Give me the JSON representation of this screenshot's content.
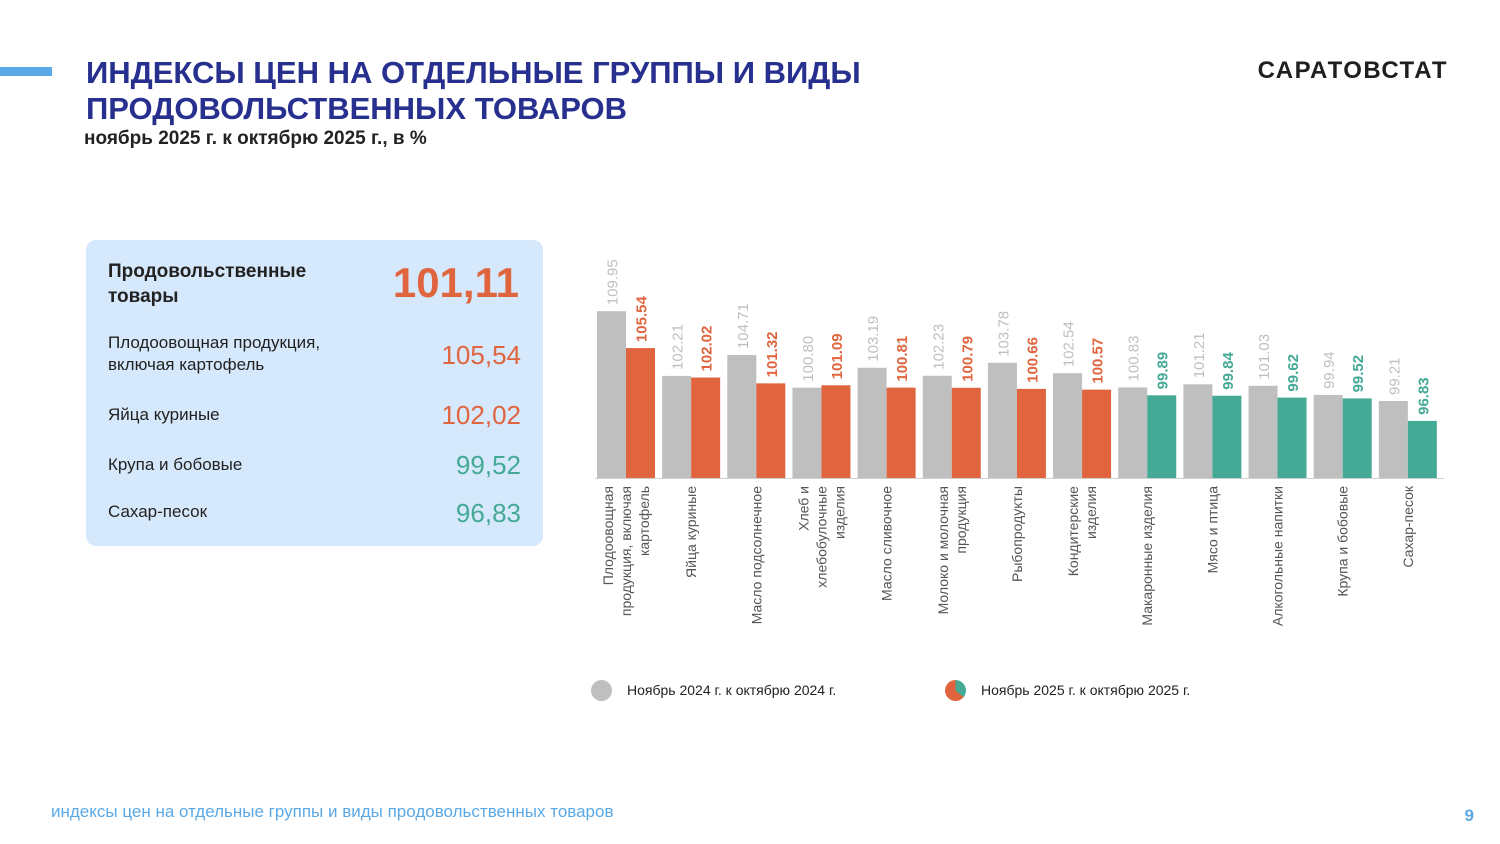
{
  "header": {
    "title_line1": "ИНДЕКСЫ ЦЕН НА ОТДЕЛЬНЫЕ ГРУППЫ И ВИДЫ",
    "title_line2": "ПРОДОВОЛЬСТВЕННЫХ ТОВАРОВ",
    "subtitle": "ноябрь 2025 г. к октябрю 2025 г., в %",
    "brand": "САРАТОВСТАТ"
  },
  "summary": {
    "main": {
      "label": "Продовольственные товары",
      "value": "101,11"
    },
    "items": [
      {
        "label": "Плодоовощная продукция, включая картофель",
        "value": "105,54"
      },
      {
        "label": "Яйца куриные",
        "value": "102,02"
      },
      {
        "label": "Крупа и бобовые",
        "value": "99,52"
      },
      {
        "label": "Сахар-песок",
        "value": "96,83"
      }
    ]
  },
  "colors": {
    "title": "#27308f",
    "gray": "#bfbfbf",
    "red": "#e0643e",
    "green": "#44a995",
    "accent": "#5aa9e6",
    "panel": "#d6e8fb"
  },
  "chart_data": {
    "type": "bar",
    "categories": [
      "Плодоовощная продукция, включая картофель",
      "Яйца куриные",
      "Масло подсолнечное",
      "Хлеб и хлебобулочные изделия",
      "Масло сливочное",
      "Молоко и молочная продукция",
      "Рыбопродукты",
      "Кондитерские изделия",
      "Макаронные изделия",
      "Мясо и птица",
      "Алкогольные напитки",
      "Крупа и бобовые",
      "Сахар-песок"
    ],
    "series": [
      {
        "name": "Ноябрь 2024 г. к октябрю 2024 г.",
        "values": [
          109.95,
          102.21,
          104.71,
          100.8,
          103.19,
          102.23,
          103.78,
          102.54,
          100.83,
          101.21,
          101.03,
          99.94,
          99.21
        ]
      },
      {
        "name": "Ноябрь 2025 г. к октябрю 2025 г.",
        "values": [
          105.54,
          102.02,
          101.32,
          101.09,
          100.81,
          100.79,
          100.66,
          100.57,
          99.89,
          99.84,
          99.62,
          99.52,
          96.83
        ]
      }
    ],
    "value_labels": [
      [
        "109.95",
        "102.21",
        "104.71",
        "100.80",
        "103.19",
        "102.23",
        "103.78",
        "102.54",
        "100.83",
        "101.21",
        "101.03",
        "99.94",
        "99.21"
      ],
      [
        "105.54",
        "102.02",
        "101.32",
        "101.09",
        "100.81",
        "100.79",
        "100.66",
        "100.57",
        "99.89",
        "99.84",
        "99.62",
        "99.52",
        "96.83"
      ]
    ],
    "category_label_lines": [
      [
        "Плодоовощная",
        "продукция, включая",
        "картофель"
      ],
      [
        "Яйца куриные"
      ],
      [
        "Масло подсолнечное"
      ],
      [
        "Хлеб и",
        "хлебобулочные",
        "изделия"
      ],
      [
        "Масло сливочное"
      ],
      [
        "Молоко и молочная",
        "продукция"
      ],
      [
        "Рыбопродукты"
      ],
      [
        "Кондитерские",
        "изделия"
      ],
      [
        "Макаронные изделия"
      ],
      [
        "Мясо и птица"
      ],
      [
        "Алкогольные напитки"
      ],
      [
        "Крупа и бобовые"
      ],
      [
        "Сахар-песок"
      ]
    ],
    "ylim": [
      90,
      111
    ],
    "grid": false,
    "legend_position": "bottom",
    "label_colors": {
      "gray": "#bfbfbf",
      "above_100": "#e0643e",
      "below_100": "#44a995"
    }
  },
  "footer": {
    "text": "индексы цен на отдельные группы и виды продовольственных товаров",
    "page_number": "9"
  }
}
